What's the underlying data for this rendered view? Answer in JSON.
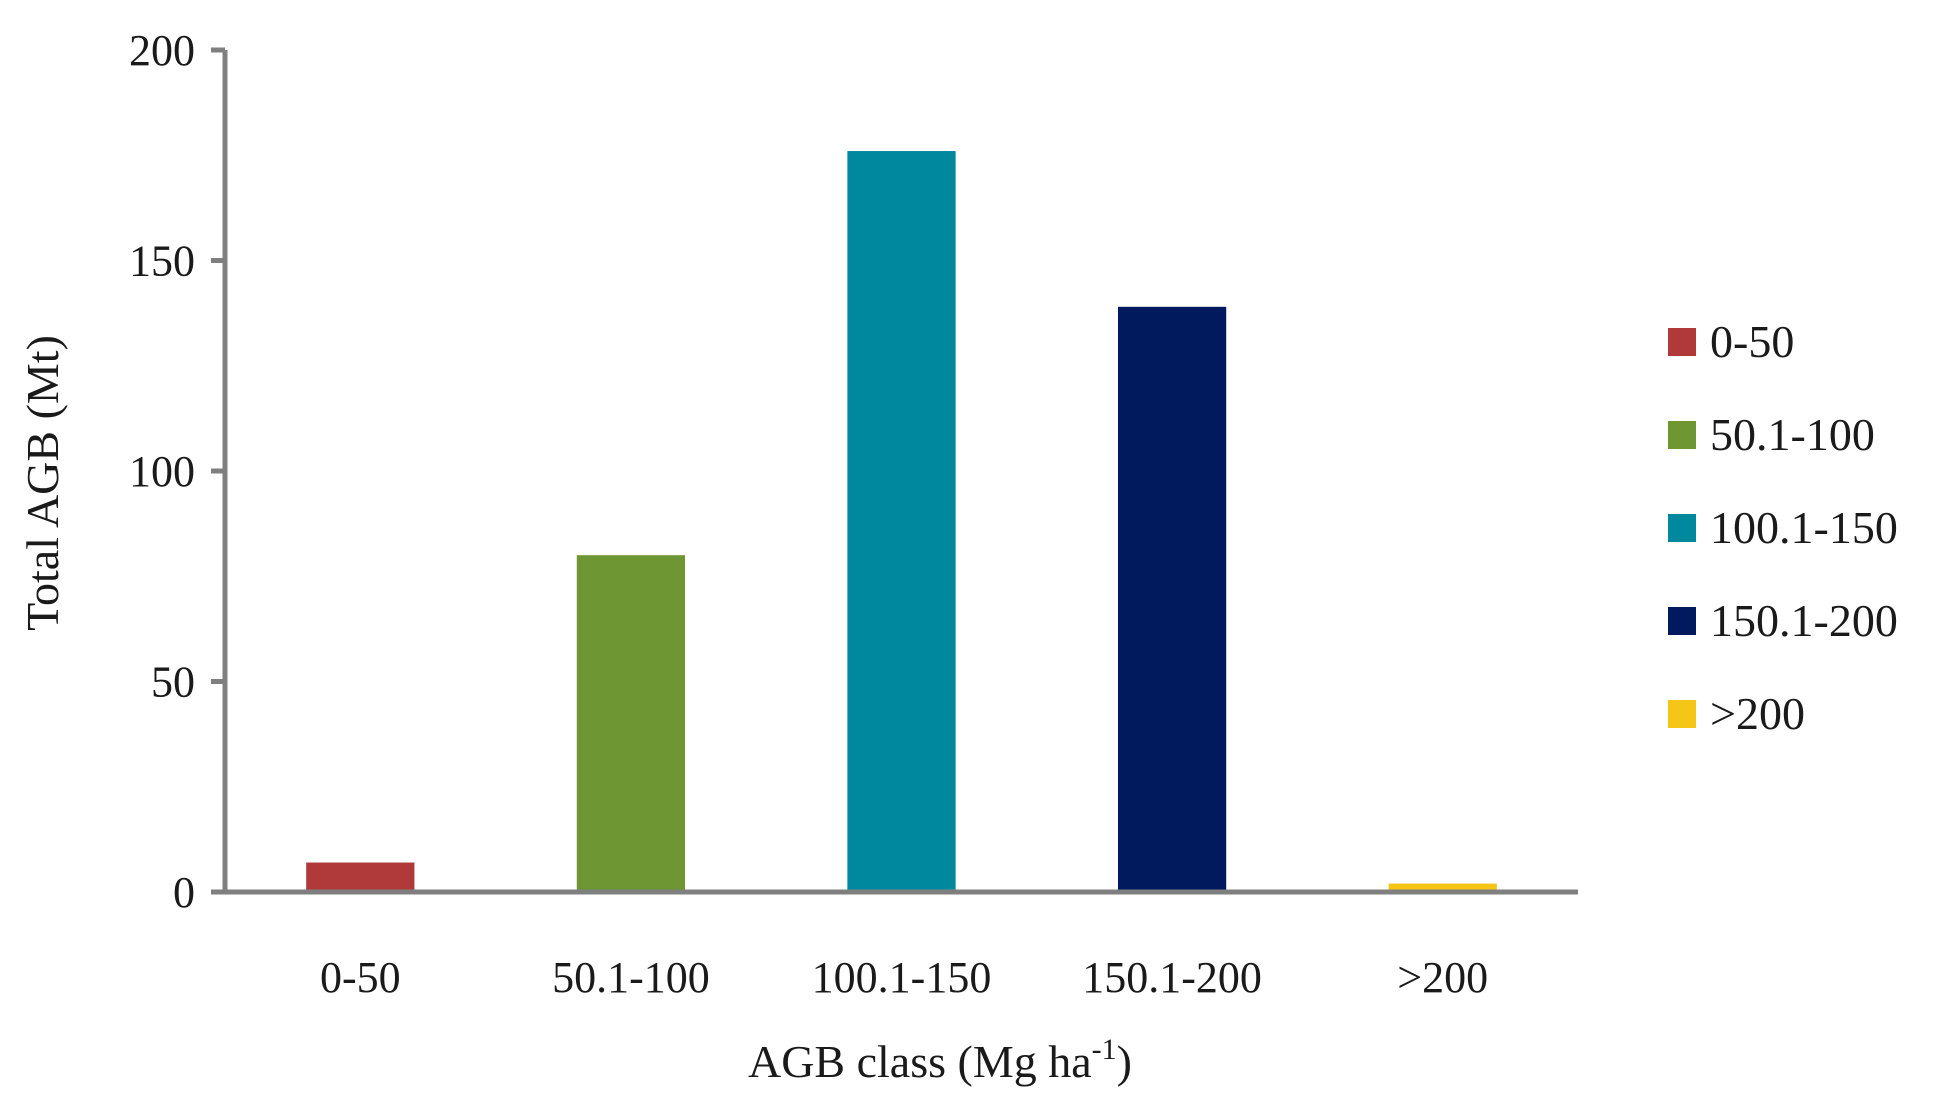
{
  "chart_data": {
    "type": "bar",
    "title": "",
    "xlabel": "AGB class (Mg ha",
    "xlabel_superscript": "-1",
    "xlabel_suffix": ")",
    "ylabel": "Total AGB  (Mt)",
    "ylim": [
      0,
      200
    ],
    "yticks": [
      "0",
      "50",
      "100",
      "150",
      "200"
    ],
    "categories": [
      "0-50",
      "50.1-100",
      "100.1-150",
      "150.1-200",
      ">200"
    ],
    "values": [
      7,
      80,
      176,
      139,
      2
    ],
    "colors": [
      "#b03a3a",
      "#6e9633",
      "#00889f",
      "#001a5e",
      "#f5c518"
    ],
    "axis_color": "#7f7f7f",
    "grid": false,
    "legend": {
      "position": "right",
      "entries": [
        "0-50",
        "50.1-100",
        "100.1-150",
        "150.1-200",
        ">200"
      ]
    }
  }
}
